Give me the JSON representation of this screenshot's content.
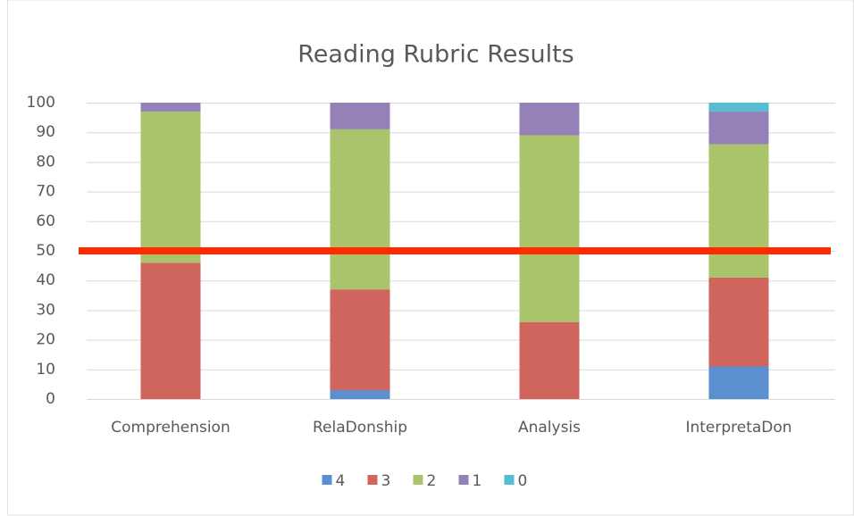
{
  "chart_data": {
    "type": "stacked_bar",
    "title": "Reading Rubric Results",
    "categories": [
      "Comprehension",
      "RelaDonship",
      "Analysis",
      "InterpretaDon"
    ],
    "series": [
      {
        "name": "4",
        "color": "#5b8fcf",
        "values": [
          0,
          3,
          0,
          11
        ]
      },
      {
        "name": "3",
        "color": "#cf655c",
        "values": [
          46,
          34,
          26,
          30
        ]
      },
      {
        "name": "2",
        "color": "#a9c46b",
        "values": [
          51,
          54,
          63,
          45
        ]
      },
      {
        "name": "1",
        "color": "#9680b8",
        "values": [
          3,
          9,
          11,
          11
        ]
      },
      {
        "name": "0",
        "color": "#55bcd2",
        "values": [
          0,
          0,
          0,
          3
        ]
      }
    ],
    "ylim": [
      0,
      100
    ],
    "yticks": [
      0,
      10,
      20,
      30,
      40,
      50,
      60,
      70,
      80,
      90,
      100
    ],
    "grid": true,
    "reference_line": {
      "value": 50,
      "color": "#ff2a00"
    },
    "legend": "bottom"
  }
}
